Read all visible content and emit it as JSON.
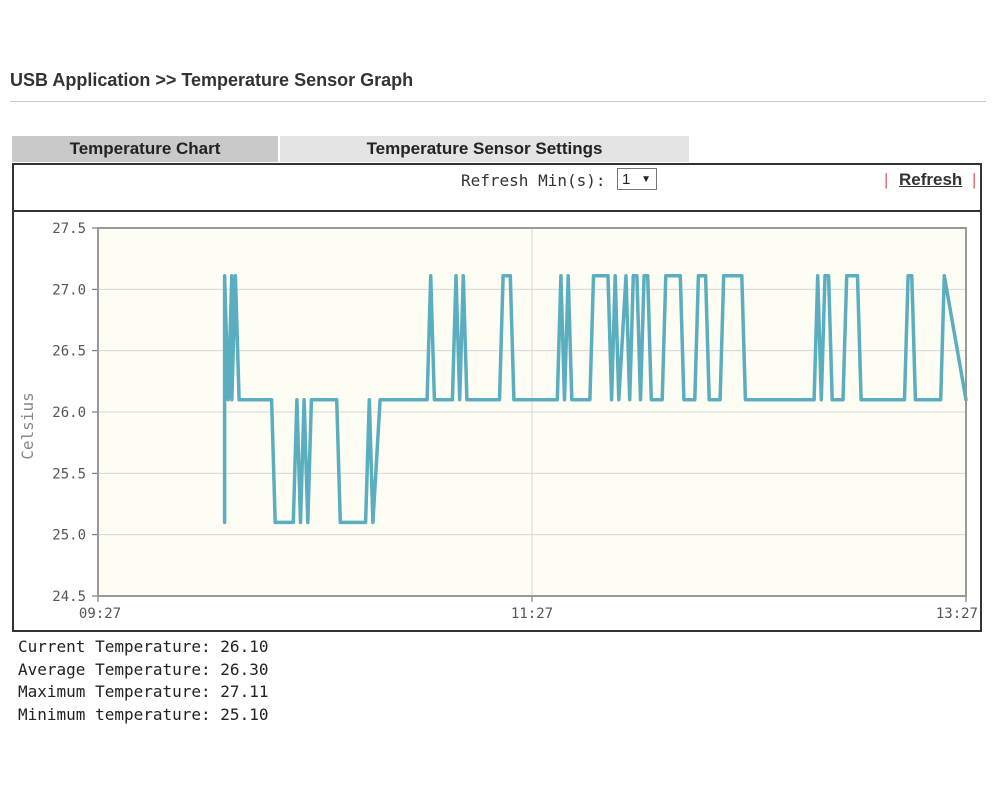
{
  "header": {
    "breadcrumb": "USB Application >> Temperature Sensor Graph"
  },
  "tabs": [
    {
      "label": "Temperature Chart",
      "active": true
    },
    {
      "label": "Temperature Sensor Settings",
      "active": false
    }
  ],
  "toolbar": {
    "refresh_label": "Refresh Min(s):",
    "refresh_value": "1",
    "refresh_link": "Refresh",
    "separator": "|"
  },
  "colors": {
    "line": "#5aaec0",
    "plot_bg": "#fdfdf4",
    "grid": "#d6d6d6",
    "separator": "#d86a6a"
  },
  "chart_data": {
    "type": "line",
    "title": "",
    "xlabel": "",
    "ylabel": "Celsius",
    "ylim": [
      24.5,
      27.5
    ],
    "yticks": [
      "27.5",
      "27.0",
      "26.5",
      "26.0",
      "25.5",
      "25.0",
      "24.5"
    ],
    "xticks": [
      "09:27",
      "11:27",
      "13:27"
    ],
    "grid": true,
    "series": [
      {
        "x": [
          "10:02",
          "10:02",
          "10:03",
          "10:04",
          "10:04",
          "10:05",
          "10:06",
          "10:06",
          "10:15",
          "10:16",
          "10:21",
          "10:22",
          "10:23",
          "10:24",
          "10:25",
          "10:26",
          "10:33",
          "10:34",
          "10:41",
          "10:42",
          "10:43",
          "10:45",
          "10:46",
          "10:58",
          "10:59",
          "11:00",
          "11:05",
          "11:06",
          "11:07",
          "11:08",
          "11:09",
          "11:10",
          "11:18",
          "11:19",
          "11:21",
          "11:22",
          "11:33",
          "11:34",
          "11:35",
          "11:36",
          "11:37",
          "11:38",
          "11:43",
          "11:44",
          "11:48",
          "11:49",
          "11:50",
          "11:51",
          "11:53",
          "11:54",
          "11:55",
          "11:56",
          "11:57",
          "11:58",
          "11:59",
          "12:00",
          "12:03",
          "12:04",
          "12:08",
          "12:09",
          "12:12",
          "12:13",
          "12:15",
          "12:16",
          "12:19",
          "12:20",
          "12:25",
          "12:26",
          "12:45",
          "12:46",
          "12:47",
          "12:48",
          "12:49",
          "12:50",
          "12:53",
          "12:54",
          "12:57",
          "12:58",
          "13:10",
          "13:11",
          "13:12",
          "13:13",
          "13:16",
          "13:17",
          "13:20",
          "13:21",
          "13:27"
        ],
        "y": [
          25.1,
          27.11,
          26.1,
          27.11,
          26.1,
          27.11,
          26.1,
          26.1,
          26.1,
          25.1,
          25.1,
          26.1,
          25.1,
          26.1,
          25.1,
          26.1,
          26.1,
          25.1,
          25.1,
          26.1,
          25.1,
          26.1,
          26.1,
          26.1,
          27.11,
          26.1,
          26.1,
          27.11,
          26.1,
          27.11,
          26.1,
          26.1,
          26.1,
          27.11,
          27.11,
          26.1,
          26.1,
          26.1,
          27.11,
          26.1,
          27.11,
          26.1,
          26.1,
          27.11,
          27.11,
          26.1,
          27.11,
          26.1,
          27.11,
          26.1,
          27.11,
          27.11,
          26.1,
          27.11,
          27.11,
          26.1,
          26.1,
          27.11,
          27.11,
          26.1,
          26.1,
          27.11,
          27.11,
          26.1,
          26.1,
          27.11,
          27.11,
          26.1,
          26.1,
          27.11,
          26.1,
          27.11,
          27.11,
          26.1,
          26.1,
          27.11,
          27.11,
          26.1,
          26.1,
          27.11,
          27.11,
          26.1,
          26.1,
          26.1,
          26.1,
          27.11,
          26.1
        ]
      }
    ]
  },
  "stats": [
    {
      "label": "Current Temperature:",
      "value": "26.10"
    },
    {
      "label": "Average Temperature:",
      "value": "26.30"
    },
    {
      "label": "Maximum Temperature:",
      "value": "27.11"
    },
    {
      "label": "Minimum temperature:",
      "value": "25.10"
    }
  ]
}
